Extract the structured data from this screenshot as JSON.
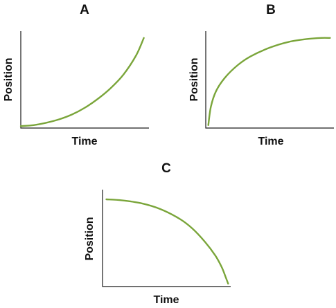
{
  "colors": {
    "curve": "#7aa53a",
    "axis": "#1a1a1a",
    "text": "#111111"
  },
  "chart_data": [
    {
      "type": "line",
      "panel_label": "A",
      "xlabel": "Time",
      "ylabel": "Position",
      "xlim": [
        0,
        1
      ],
      "ylim": [
        0,
        1
      ],
      "grid": false,
      "series": [
        {
          "x": [
            0,
            0.1,
            0.2,
            0.3,
            0.4,
            0.5,
            0.6,
            0.7,
            0.8,
            0.9,
            0.96
          ],
          "y": [
            0.02,
            0.03,
            0.055,
            0.09,
            0.14,
            0.21,
            0.3,
            0.41,
            0.55,
            0.75,
            0.93
          ]
        }
      ]
    },
    {
      "type": "line",
      "panel_label": "B",
      "xlabel": "Time",
      "ylabel": "Position",
      "xlim": [
        0,
        1
      ],
      "ylim": [
        0,
        1
      ],
      "grid": false,
      "series": [
        {
          "x": [
            0.02,
            0.04,
            0.08,
            0.15,
            0.25,
            0.35,
            0.5,
            0.65,
            0.8,
            0.9,
            0.97
          ],
          "y": [
            0.03,
            0.22,
            0.38,
            0.52,
            0.65,
            0.74,
            0.83,
            0.89,
            0.92,
            0.93,
            0.93
          ]
        }
      ]
    },
    {
      "type": "line",
      "panel_label": "C",
      "xlabel": "Time",
      "ylabel": "Position",
      "xlim": [
        0,
        1
      ],
      "ylim": [
        0,
        1
      ],
      "grid": false,
      "series": [
        {
          "x": [
            0.03,
            0.15,
            0.3,
            0.45,
            0.6,
            0.7,
            0.8,
            0.88,
            0.93,
            0.96,
            0.98
          ],
          "y": [
            0.9,
            0.89,
            0.86,
            0.8,
            0.7,
            0.6,
            0.46,
            0.32,
            0.2,
            0.1,
            0.03
          ]
        }
      ]
    }
  ]
}
